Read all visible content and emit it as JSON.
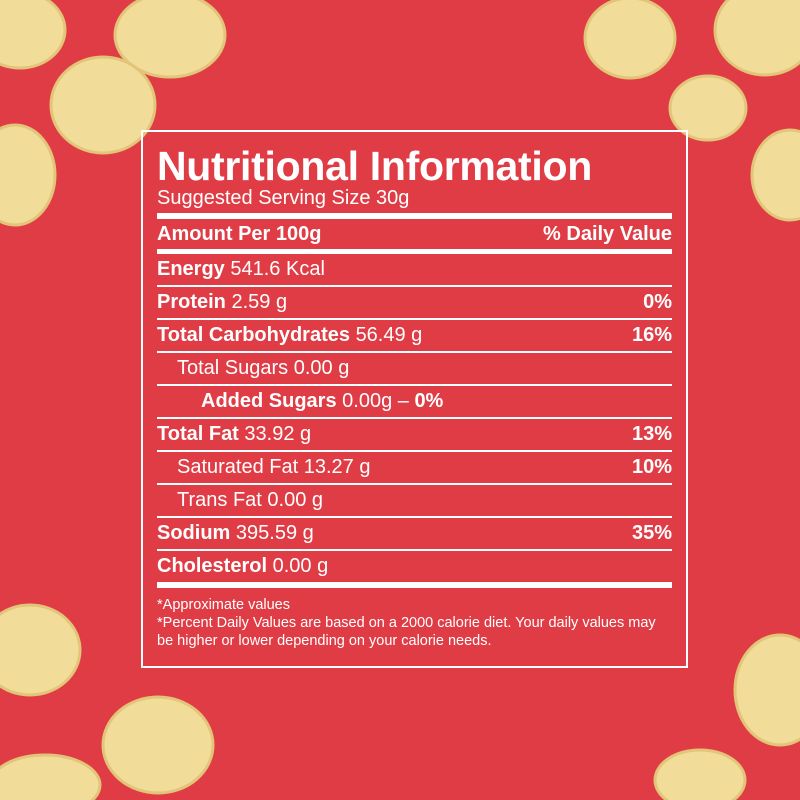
{
  "title": "Nutritional Information",
  "subtitle": "Suggested Serving Size 30g",
  "header": {
    "left": "Amount Per 100g",
    "right": "% Daily Value"
  },
  "rows": [
    {
      "name": "Energy",
      "amount": "541.6 Kcal"
    },
    {
      "name": "Protein",
      "amount": "2.59 g",
      "dv": "0%"
    },
    {
      "name": "Total Carbohydrates",
      "amount": "56.49 g",
      "dv": "16%"
    },
    {
      "name": "Total Sugars",
      "amount": "0.00 g"
    },
    {
      "name": "Added Sugars",
      "amount": "0.00g –",
      "dv": "0%"
    },
    {
      "name": "Total Fat",
      "amount": "33.92 g",
      "dv": "13%"
    },
    {
      "name": "Saturated Fat",
      "amount": "13.27 g",
      "dv": "10%"
    },
    {
      "name": "Trans Fat",
      "amount": "0.00 g"
    },
    {
      "name": "Sodium",
      "amount": "395.59 g",
      "dv": "35%"
    },
    {
      "name": "Cholesterol",
      "amount": "0.00 g"
    }
  ],
  "footnotes": [
    "*Approximate values",
    "*Percent Daily Values are based on a 2000 calorie diet. Your daily values may be higher or lower depending on your calorie needs."
  ]
}
